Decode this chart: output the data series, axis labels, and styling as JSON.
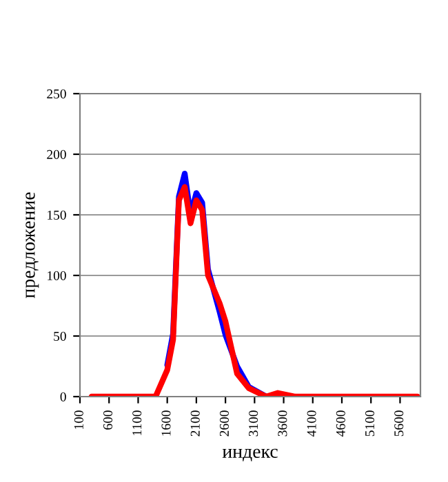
{
  "chart_data": {
    "type": "line",
    "xlabel": "индекс",
    "ylabel": "предложение",
    "x": [
      300,
      1400,
      1600,
      1700,
      1800,
      1900,
      2000,
      2100,
      2200,
      2300,
      2500,
      2600,
      2800,
      3000,
      3300,
      3500,
      3800,
      5900
    ],
    "series": [
      {
        "color": "#0000ff",
        "values": [
          null,
          null,
          26,
          52,
          165,
          184,
          150,
          168,
          160,
          105,
          70,
          51,
          25,
          8,
          0,
          null,
          null,
          null
        ]
      },
      {
        "color": "#ff0000",
        "values": [
          0,
          0,
          22,
          47,
          162,
          173,
          143,
          162,
          154,
          100,
          77,
          62,
          19,
          7,
          0,
          3,
          0,
          0
        ]
      }
    ],
    "xlim": [
      100,
      5950
    ],
    "xticks": [
      100,
      600,
      1100,
      1600,
      2100,
      2600,
      3100,
      3600,
      4100,
      4600,
      5100,
      5600
    ],
    "ylim": [
      0,
      250
    ],
    "yticks": [
      0,
      50,
      100,
      150,
      200,
      250
    ],
    "grid": "y",
    "legend": false
  }
}
